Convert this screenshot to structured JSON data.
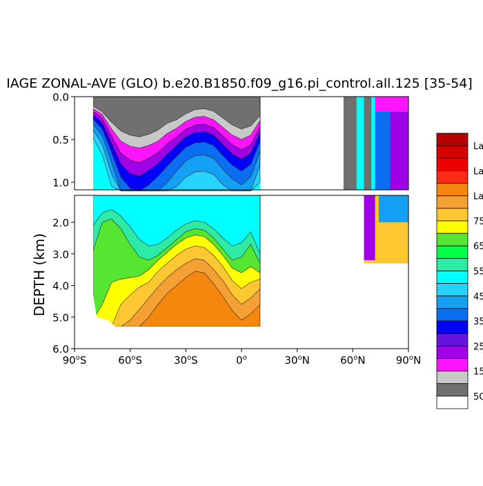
{
  "chart_data": {
    "type": "heatmap",
    "title": "IAGE ZONAL-AVE (GLO) b.e20.B1850.f09_g16.pi_control.all.125 [35-54]",
    "ylabel": "DEPTH (km)",
    "xlabel": "",
    "x_range": [
      -90,
      90
    ],
    "y_range": [
      0,
      6
    ],
    "y_upper_panel": {
      "range": [
        0,
        1.1
      ],
      "ticks": [
        "0.0",
        "0.5",
        "1.0"
      ],
      "tick_values": [
        0,
        0.5,
        1.0
      ]
    },
    "y_lower_panel": {
      "range": [
        1.2,
        6.0
      ],
      "ticks": [
        "2.0",
        "3.0",
        "4.0",
        "5.0",
        "6.0"
      ],
      "tick_values": [
        2,
        3,
        4,
        5,
        6
      ]
    },
    "x_ticks": [
      {
        "value": -90,
        "deg": "90",
        "hemi": "S"
      },
      {
        "value": -60,
        "deg": "60",
        "hemi": "S"
      },
      {
        "value": -30,
        "deg": "30",
        "hemi": "S"
      },
      {
        "value": 0,
        "deg": "0",
        "hemi": ""
      },
      {
        "value": 30,
        "deg": "30",
        "hemi": "N"
      },
      {
        "value": 60,
        "deg": "60",
        "hemi": "N"
      },
      {
        "value": 90,
        "deg": "90",
        "hemi": "N"
      }
    ],
    "legend_placement": "right",
    "legend": [
      {
        "label": "La",
        "color": "#b40000"
      },
      {
        "label": "",
        "color": "#d70000"
      },
      {
        "label": "La",
        "color": "#ee0000"
      },
      {
        "label": "",
        "color": "#ff2a14"
      },
      {
        "label": "La",
        "color": "#f5870f"
      },
      {
        "label": "",
        "color": "#f5a032"
      },
      {
        "label": "75",
        "color": "#ffc832"
      },
      {
        "label": "",
        "color": "#ffff00"
      },
      {
        "label": "65",
        "color": "#55e632"
      },
      {
        "label": "",
        "color": "#00ff46"
      },
      {
        "label": "55",
        "color": "#2deba5"
      },
      {
        "label": "",
        "color": "#00ffff"
      },
      {
        "label": "45",
        "color": "#28d2ff"
      },
      {
        "label": "",
        "color": "#14a0f5"
      },
      {
        "label": "35",
        "color": "#0a6ef0"
      },
      {
        "label": "",
        "color": "#0000ff"
      },
      {
        "label": "25",
        "color": "#6414dc"
      },
      {
        "label": "",
        "color": "#a000e6"
      },
      {
        "label": "15",
        "color": "#ff14ff"
      },
      {
        "label": "",
        "color": "#c8c8c8"
      },
      {
        "label": "5C",
        "color": "#707070"
      },
      {
        "label": "",
        "color": "#ffffff"
      }
    ],
    "upper_bands": [
      {
        "color": "#707070",
        "z": [
          0.11,
          0.18,
          0.3,
          0.4,
          0.45,
          0.47,
          0.44,
          0.39,
          0.31,
          0.27,
          0.2,
          0.15,
          0.14,
          0.17,
          0.25,
          0.33,
          0.38,
          0.34,
          0.22
        ]
      },
      {
        "color": "#c8c8c8",
        "z": [
          0.14,
          0.21,
          0.38,
          0.52,
          0.58,
          0.6,
          0.57,
          0.52,
          0.43,
          0.37,
          0.29,
          0.24,
          0.23,
          0.27,
          0.36,
          0.45,
          0.5,
          0.45,
          0.28
        ]
      },
      {
        "color": "#ff14ff",
        "z": [
          0.17,
          0.25,
          0.46,
          0.66,
          0.74,
          0.77,
          0.72,
          0.65,
          0.55,
          0.47,
          0.38,
          0.33,
          0.32,
          0.36,
          0.46,
          0.56,
          0.62,
          0.56,
          0.35
        ]
      },
      {
        "color": "#a000e6",
        "z": [
          0.21,
          0.31,
          0.55,
          0.79,
          0.9,
          0.93,
          0.86,
          0.78,
          0.67,
          0.57,
          0.47,
          0.42,
          0.41,
          0.45,
          0.56,
          0.67,
          0.73,
          0.66,
          0.42
        ]
      },
      {
        "color": "#0000ff",
        "z": [
          0.26,
          0.38,
          0.65,
          0.94,
          1.07,
          1.1,
          1.03,
          0.93,
          0.81,
          0.7,
          0.59,
          0.54,
          0.53,
          0.57,
          0.69,
          0.8,
          0.87,
          0.79,
          0.52
        ]
      },
      {
        "color": "#0a6ef0",
        "z": [
          0.32,
          0.46,
          0.77,
          1.1,
          1.1,
          1.1,
          1.1,
          1.1,
          1.0,
          0.87,
          0.75,
          0.69,
          0.68,
          0.72,
          0.85,
          0.96,
          1.03,
          0.94,
          0.64
        ]
      },
      {
        "color": "#14a0f5",
        "z": [
          0.39,
          0.56,
          0.91,
          1.1,
          1.1,
          1.1,
          1.1,
          1.1,
          1.1,
          1.05,
          0.94,
          0.88,
          0.87,
          0.91,
          1.03,
          1.1,
          1.1,
          1.1,
          0.8
        ]
      },
      {
        "color": "#28d2ff",
        "z": [
          0.48,
          0.68,
          1.05,
          1.1,
          1.1,
          1.1,
          1.1,
          1.1,
          1.1,
          1.1,
          1.1,
          1.1,
          1.1,
          1.1,
          1.1,
          1.1,
          1.1,
          1.1,
          1.0
        ]
      }
    ],
    "lower_bands": [
      {
        "color": "#00ffff",
        "z": [
          2.1,
          1.7,
          1.6,
          1.8,
          2.15,
          2.55,
          2.75,
          2.7,
          2.5,
          2.25,
          2.05,
          1.95,
          2.0,
          2.2,
          2.5,
          2.75,
          2.65,
          2.3,
          3.0
        ]
      },
      {
        "color": "#2deba5",
        "z": [
          2.9,
          2.0,
          1.9,
          2.2,
          2.7,
          3.1,
          3.2,
          3.05,
          2.8,
          2.55,
          2.3,
          2.2,
          2.25,
          2.5,
          2.85,
          3.2,
          3.1,
          2.7,
          3.3
        ]
      },
      {
        "color": "#55e632",
        "z": [
          5.1,
          4.6,
          3.9,
          3.8,
          3.75,
          3.7,
          3.5,
          3.2,
          2.95,
          2.7,
          2.5,
          2.4,
          2.45,
          2.7,
          3.05,
          3.45,
          3.6,
          3.4,
          3.6
        ]
      },
      {
        "color": "#ffff00",
        "z": [
          5.3,
          5.3,
          5.3,
          4.6,
          4.3,
          4.05,
          3.9,
          3.55,
          3.3,
          3.05,
          2.85,
          2.75,
          2.8,
          3.05,
          3.4,
          3.85,
          4.1,
          3.9,
          3.8
        ]
      },
      {
        "color": "#ffc832",
        "z": [
          5.3,
          5.3,
          5.3,
          5.3,
          5.1,
          4.75,
          4.4,
          4.05,
          3.75,
          3.5,
          3.3,
          3.15,
          3.2,
          3.5,
          3.85,
          4.3,
          4.6,
          4.4,
          4.1
        ]
      },
      {
        "color": "#f5a032",
        "z": [
          5.3,
          5.3,
          5.3,
          5.3,
          5.3,
          5.3,
          5.0,
          4.6,
          4.25,
          4.0,
          3.75,
          3.55,
          3.6,
          3.95,
          4.35,
          4.8,
          5.1,
          4.9,
          4.6
        ]
      },
      {
        "color": "#f5870f",
        "z": [
          5.3,
          5.3,
          5.3,
          5.3,
          5.3,
          5.3,
          5.3,
          5.3,
          5.3,
          5.3,
          5.3,
          5.3,
          5.3,
          5.3,
          5.3,
          5.3,
          5.3,
          5.3,
          5.3
        ]
      }
    ],
    "band_lat": [
      -80,
      -75,
      -70,
      -65,
      -60,
      -55,
      -50,
      -45,
      -40,
      -35,
      -30,
      -25,
      -20,
      -15,
      -10,
      -5,
      0,
      5,
      10
    ]
  }
}
